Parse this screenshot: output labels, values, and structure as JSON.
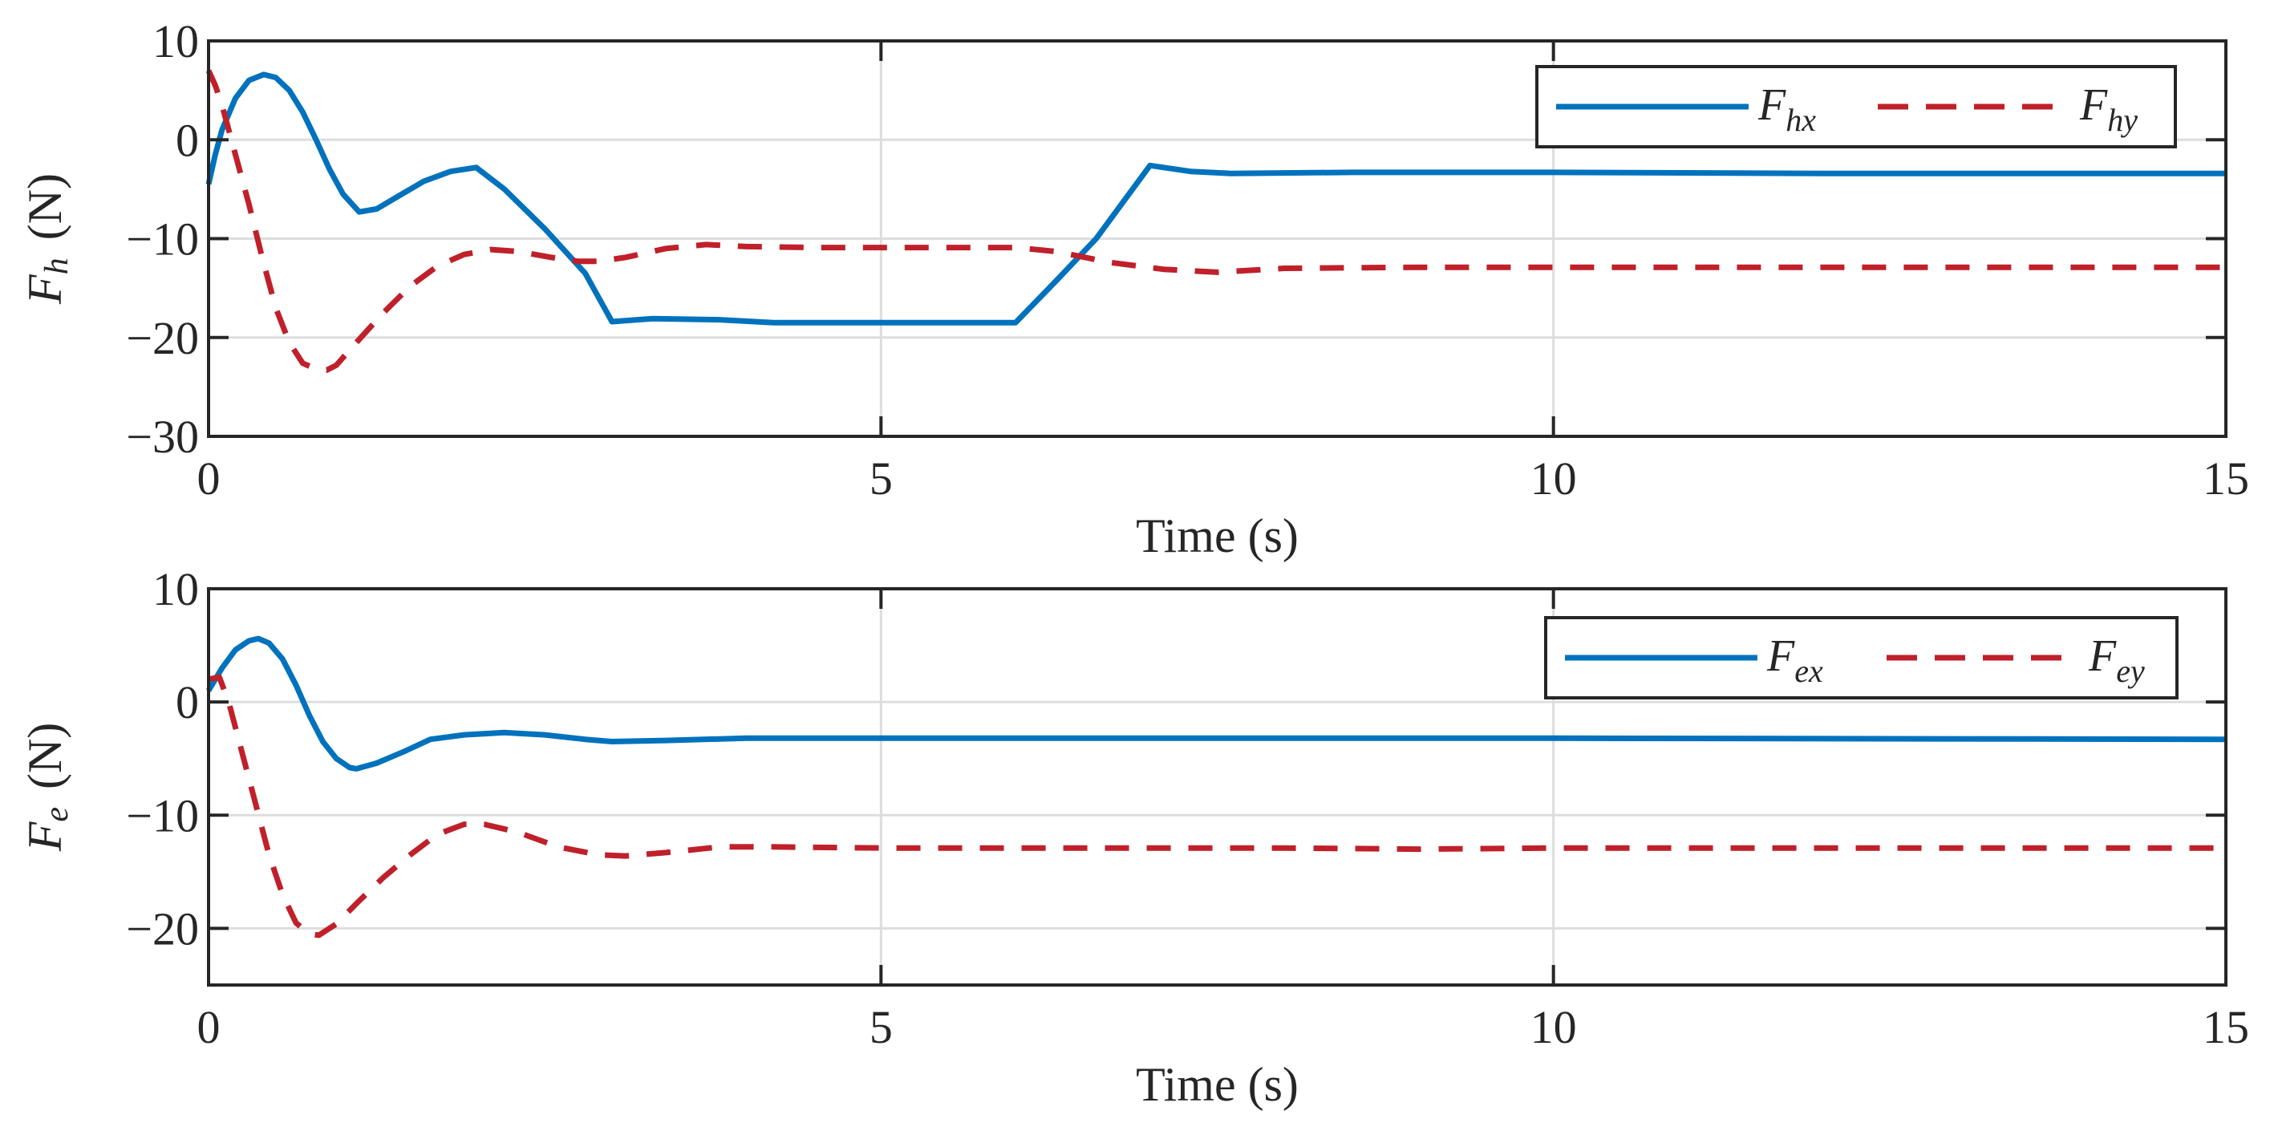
{
  "colors": {
    "series_blue": "#0072BD",
    "series_red": "#C0202A",
    "axis": "#262626",
    "grid": "#DDDDDD"
  },
  "chart_data": [
    {
      "type": "line",
      "title": "",
      "xlabel": "Time (s)",
      "ylabel": "F_h (N)",
      "ylabel_main": "F",
      "ylabel_sub": "h",
      "ylabel_unit": "(N)",
      "xlim": [
        0,
        15
      ],
      "ylim": [
        -30,
        10
      ],
      "xticks": [
        0,
        5,
        10,
        15
      ],
      "xtick_labels": [
        "0",
        "5",
        "10",
        "15"
      ],
      "yticks": [
        -30,
        -20,
        -10,
        0,
        10
      ],
      "ytick_labels": [
        "−30",
        "−20",
        "−10",
        "0",
        "10"
      ],
      "grid": true,
      "legend_position": "upper right",
      "series": [
        {
          "name": "F_hx",
          "legend_main": "F",
          "legend_sub": "hx",
          "style": "solid",
          "color": "#0072BD",
          "x": [
            0,
            0.05,
            0.1,
            0.2,
            0.3,
            0.41,
            0.5,
            0.6,
            0.7,
            0.8,
            0.9,
            1.0,
            1.12,
            1.25,
            1.4,
            1.6,
            1.8,
            1.99,
            2.2,
            2.5,
            2.8,
            3.0,
            3.3,
            3.8,
            4.2,
            5.0,
            6.0,
            6.3,
            6.6,
            7.0,
            7.3,
            7.6,
            8.5,
            10,
            12,
            15
          ],
          "values": [
            -4.5,
            -1.5,
            1.0,
            4.2,
            6.0,
            6.6,
            6.3,
            5.0,
            2.8,
            0.0,
            -3.0,
            -5.5,
            -7.3,
            -7.0,
            -5.8,
            -4.2,
            -3.2,
            -2.8,
            -5.0,
            -9.0,
            -13.5,
            -18.4,
            -18.1,
            -18.2,
            -18.5,
            -18.5,
            -18.5,
            -14.3,
            -10.0,
            -2.6,
            -3.2,
            -3.4,
            -3.3,
            -3.3,
            -3.4,
            -3.4
          ]
        },
        {
          "name": "F_hy",
          "legend_main": "F",
          "legend_sub": "hy",
          "style": "dashed",
          "color": "#C0202A",
          "x": [
            0,
            0.05,
            0.1,
            0.2,
            0.3,
            0.4,
            0.5,
            0.6,
            0.7,
            0.8,
            0.88,
            0.95,
            1.1,
            1.3,
            1.5,
            1.7,
            1.9,
            2.1,
            2.3,
            2.55,
            2.75,
            2.9,
            3.1,
            3.4,
            3.7,
            4.0,
            4.5,
            5.0,
            6.0,
            6.3,
            6.7,
            7.1,
            7.5,
            8.0,
            9.0,
            10,
            15
          ],
          "values": [
            7.0,
            5.5,
            3.5,
            -1.5,
            -6.5,
            -12.0,
            -17.0,
            -20.5,
            -22.6,
            -23.2,
            -23.3,
            -22.8,
            -20.5,
            -17.5,
            -14.8,
            -12.8,
            -11.6,
            -11.1,
            -11.3,
            -11.9,
            -12.3,
            -12.3,
            -11.9,
            -11.0,
            -10.6,
            -10.8,
            -10.9,
            -10.9,
            -10.9,
            -11.3,
            -12.4,
            -13.1,
            -13.4,
            -13.0,
            -12.9,
            -12.9,
            -12.9
          ]
        }
      ]
    },
    {
      "type": "line",
      "title": "",
      "xlabel": "Time (s)",
      "ylabel": "F_e (N)",
      "ylabel_main": "F",
      "ylabel_sub": "e",
      "ylabel_unit": "(N)",
      "xlim": [
        0,
        15
      ],
      "ylim": [
        -25,
        10
      ],
      "xticks": [
        0,
        5,
        10,
        15
      ],
      "xtick_labels": [
        "0",
        "5",
        "10",
        "15"
      ],
      "yticks": [
        -20,
        -10,
        0,
        10
      ],
      "ytick_labels": [
        "−20",
        "−10",
        "0",
        "10"
      ],
      "grid": true,
      "legend_position": "upper right",
      "series": [
        {
          "name": "F_ex",
          "legend_main": "F",
          "legend_sub": "ex",
          "style": "solid",
          "color": "#0072BD",
          "x": [
            0,
            0.1,
            0.2,
            0.3,
            0.37,
            0.45,
            0.55,
            0.65,
            0.75,
            0.85,
            0.95,
            1.05,
            1.1,
            1.25,
            1.45,
            1.65,
            1.9,
            2.2,
            2.5,
            2.8,
            3.0,
            3.4,
            4.0,
            5.0,
            8.0,
            10,
            15
          ],
          "values": [
            1.0,
            3.0,
            4.6,
            5.4,
            5.6,
            5.2,
            3.8,
            1.5,
            -1.2,
            -3.5,
            -5.0,
            -5.8,
            -5.9,
            -5.4,
            -4.4,
            -3.3,
            -2.9,
            -2.7,
            -2.9,
            -3.3,
            -3.5,
            -3.4,
            -3.2,
            -3.2,
            -3.2,
            -3.2,
            -3.3
          ]
        },
        {
          "name": "F_ey",
          "legend_main": "F",
          "legend_sub": "ey",
          "style": "dashed",
          "color": "#C0202A",
          "x": [
            0,
            0.08,
            0.15,
            0.25,
            0.35,
            0.45,
            0.55,
            0.65,
            0.75,
            0.82,
            0.95,
            1.1,
            1.3,
            1.5,
            1.7,
            1.9,
            2.05,
            2.3,
            2.6,
            2.9,
            3.1,
            3.4,
            3.8,
            4.2,
            5.0,
            8.0,
            9.0,
            10,
            15
          ],
          "values": [
            2.0,
            2.2,
            0.0,
            -4.5,
            -9.0,
            -13.5,
            -17.0,
            -19.5,
            -20.5,
            -20.6,
            -19.6,
            -17.8,
            -15.5,
            -13.5,
            -11.7,
            -10.8,
            -10.8,
            -11.5,
            -12.8,
            -13.5,
            -13.6,
            -13.3,
            -12.8,
            -12.8,
            -12.9,
            -12.9,
            -13.0,
            -12.9,
            -12.9
          ]
        }
      ]
    }
  ]
}
